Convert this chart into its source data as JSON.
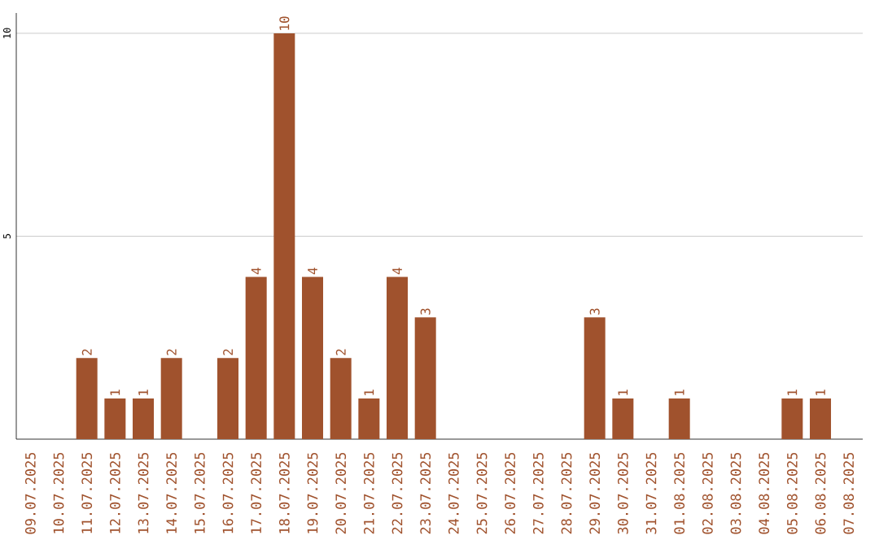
{
  "chart_data": {
    "type": "bar",
    "categories": [
      "09.07.2025",
      "10.07.2025",
      "11.07.2025",
      "12.07.2025",
      "13.07.2025",
      "14.07.2025",
      "15.07.2025",
      "16.07.2025",
      "17.07.2025",
      "18.07.2025",
      "19.07.2025",
      "20.07.2025",
      "21.07.2025",
      "22.07.2025",
      "23.07.2025",
      "24.07.2025",
      "25.07.2025",
      "26.07.2025",
      "27.07.2025",
      "28.07.2025",
      "29.07.2025",
      "30.07.2025",
      "31.07.2025",
      "01.08.2025",
      "02.08.2025",
      "03.08.2025",
      "04.08.2025",
      "05.08.2025",
      "06.08.2025",
      "07.08.2025"
    ],
    "values": [
      null,
      null,
      2,
      1,
      1,
      2,
      null,
      2,
      4,
      10,
      4,
      2,
      1,
      4,
      3,
      null,
      null,
      null,
      null,
      null,
      3,
      1,
      null,
      1,
      null,
      null,
      null,
      1,
      1,
      null
    ],
    "color": "#a0522d",
    "ylim": [
      0,
      10.5
    ],
    "yticks": [
      5,
      10
    ],
    "grid": "y",
    "data_labels": true
  }
}
